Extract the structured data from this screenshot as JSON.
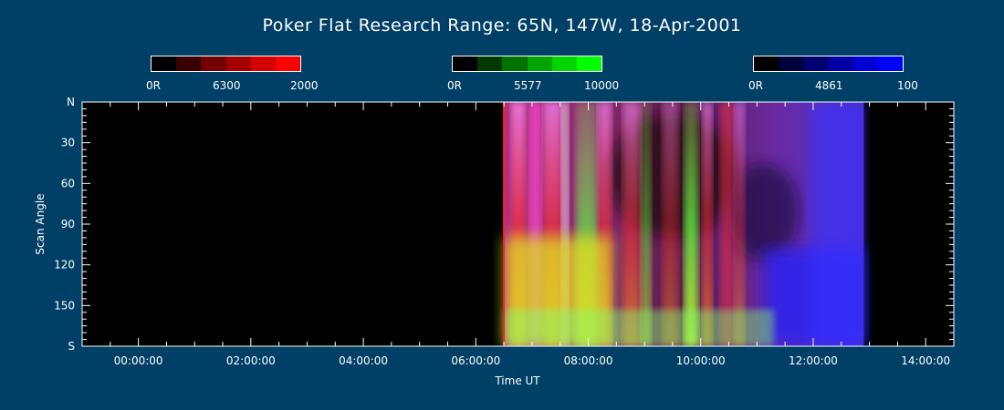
{
  "title": "Poker Flat Research Range: 65N, 147W, 18-Apr-2001",
  "colorbars": [
    {
      "wavelength": "6300",
      "min_label": "0R",
      "max_label": "2000",
      "colors": [
        "#000000",
        "#3a0000",
        "#720000",
        "#a50000",
        "#d50000",
        "#ff0000"
      ]
    },
    {
      "wavelength": "5577",
      "min_label": "0R",
      "max_label": "10000",
      "colors": [
        "#000000",
        "#003a00",
        "#007200",
        "#00a500",
        "#00d500",
        "#00ff00"
      ]
    },
    {
      "wavelength": "4861",
      "min_label": "0R",
      "max_label": "100",
      "colors": [
        "#000000",
        "#00003a",
        "#000072",
        "#0000a5",
        "#0000d5",
        "#0000ff"
      ]
    }
  ],
  "chart_data": {
    "type": "heatmap",
    "xlabel": "Time UT",
    "ylabel": "Scan Angle",
    "x_ticks": [
      "00:00:00",
      "02:00:00",
      "04:00:00",
      "06:00:00",
      "08:00:00",
      "10:00:00",
      "12:00:00",
      "14:00:00"
    ],
    "y_ticks": [
      "N",
      "30",
      "60",
      "90",
      "120",
      "150",
      "S"
    ],
    "xlim_hours": [
      -1.0,
      14.5
    ],
    "ylim_deg": [
      0,
      180
    ],
    "data_start_hours": 6.5,
    "data_end_hours": 12.9
  }
}
